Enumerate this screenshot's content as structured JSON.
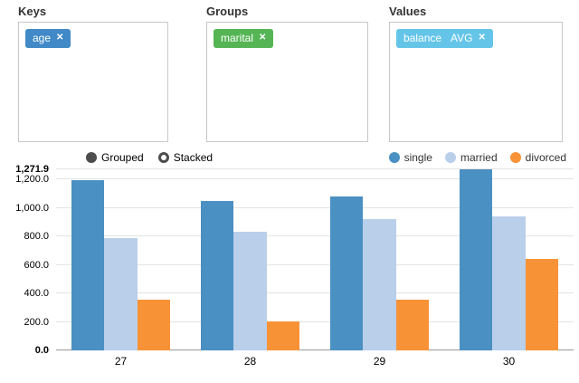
{
  "panels": [
    {
      "label": "Keys",
      "tags": [
        {
          "name": "age",
          "agg": "",
          "color": "#4189c7",
          "remove": "✕"
        }
      ]
    },
    {
      "label": "Groups",
      "tags": [
        {
          "name": "marital",
          "agg": "",
          "color": "#55b555",
          "remove": "✕"
        }
      ]
    },
    {
      "label": "Values",
      "tags": [
        {
          "name": "balance",
          "agg": "AVG",
          "color": "#64c5e8",
          "remove": "✕"
        }
      ]
    }
  ],
  "chart_controls": {
    "grouped_label": "Grouped",
    "stacked_label": "Stacked",
    "selected": "Grouped"
  },
  "chart_data": {
    "type": "bar",
    "categories": [
      "27",
      "28",
      "29",
      "30"
    ],
    "series": [
      {
        "name": "single",
        "color": "#4a90c2",
        "values": [
          1195,
          1050,
          1080,
          1271.9
        ]
      },
      {
        "name": "married",
        "color": "#b9cfea",
        "values": [
          790,
          835,
          925,
          940
        ]
      },
      {
        "name": "divorced",
        "color": "#f89237",
        "values": [
          355,
          205,
          355,
          640
        ]
      }
    ],
    "ylim": [
      0,
      1271.9
    ],
    "yticks": [
      {
        "v": 0,
        "label": "0.0",
        "bold": true
      },
      {
        "v": 200,
        "label": "200.0",
        "bold": false
      },
      {
        "v": 400,
        "label": "400.0",
        "bold": false
      },
      {
        "v": 600,
        "label": "600.0",
        "bold": false
      },
      {
        "v": 800,
        "label": "800.0",
        "bold": false
      },
      {
        "v": 1000,
        "label": "1,000.0",
        "bold": false
      },
      {
        "v": 1200,
        "label": "1,200.0",
        "bold": false
      },
      {
        "v": 1271.9,
        "label": "1,271.9",
        "bold": true
      }
    ],
    "grid": true,
    "legend_position": "top-right"
  }
}
